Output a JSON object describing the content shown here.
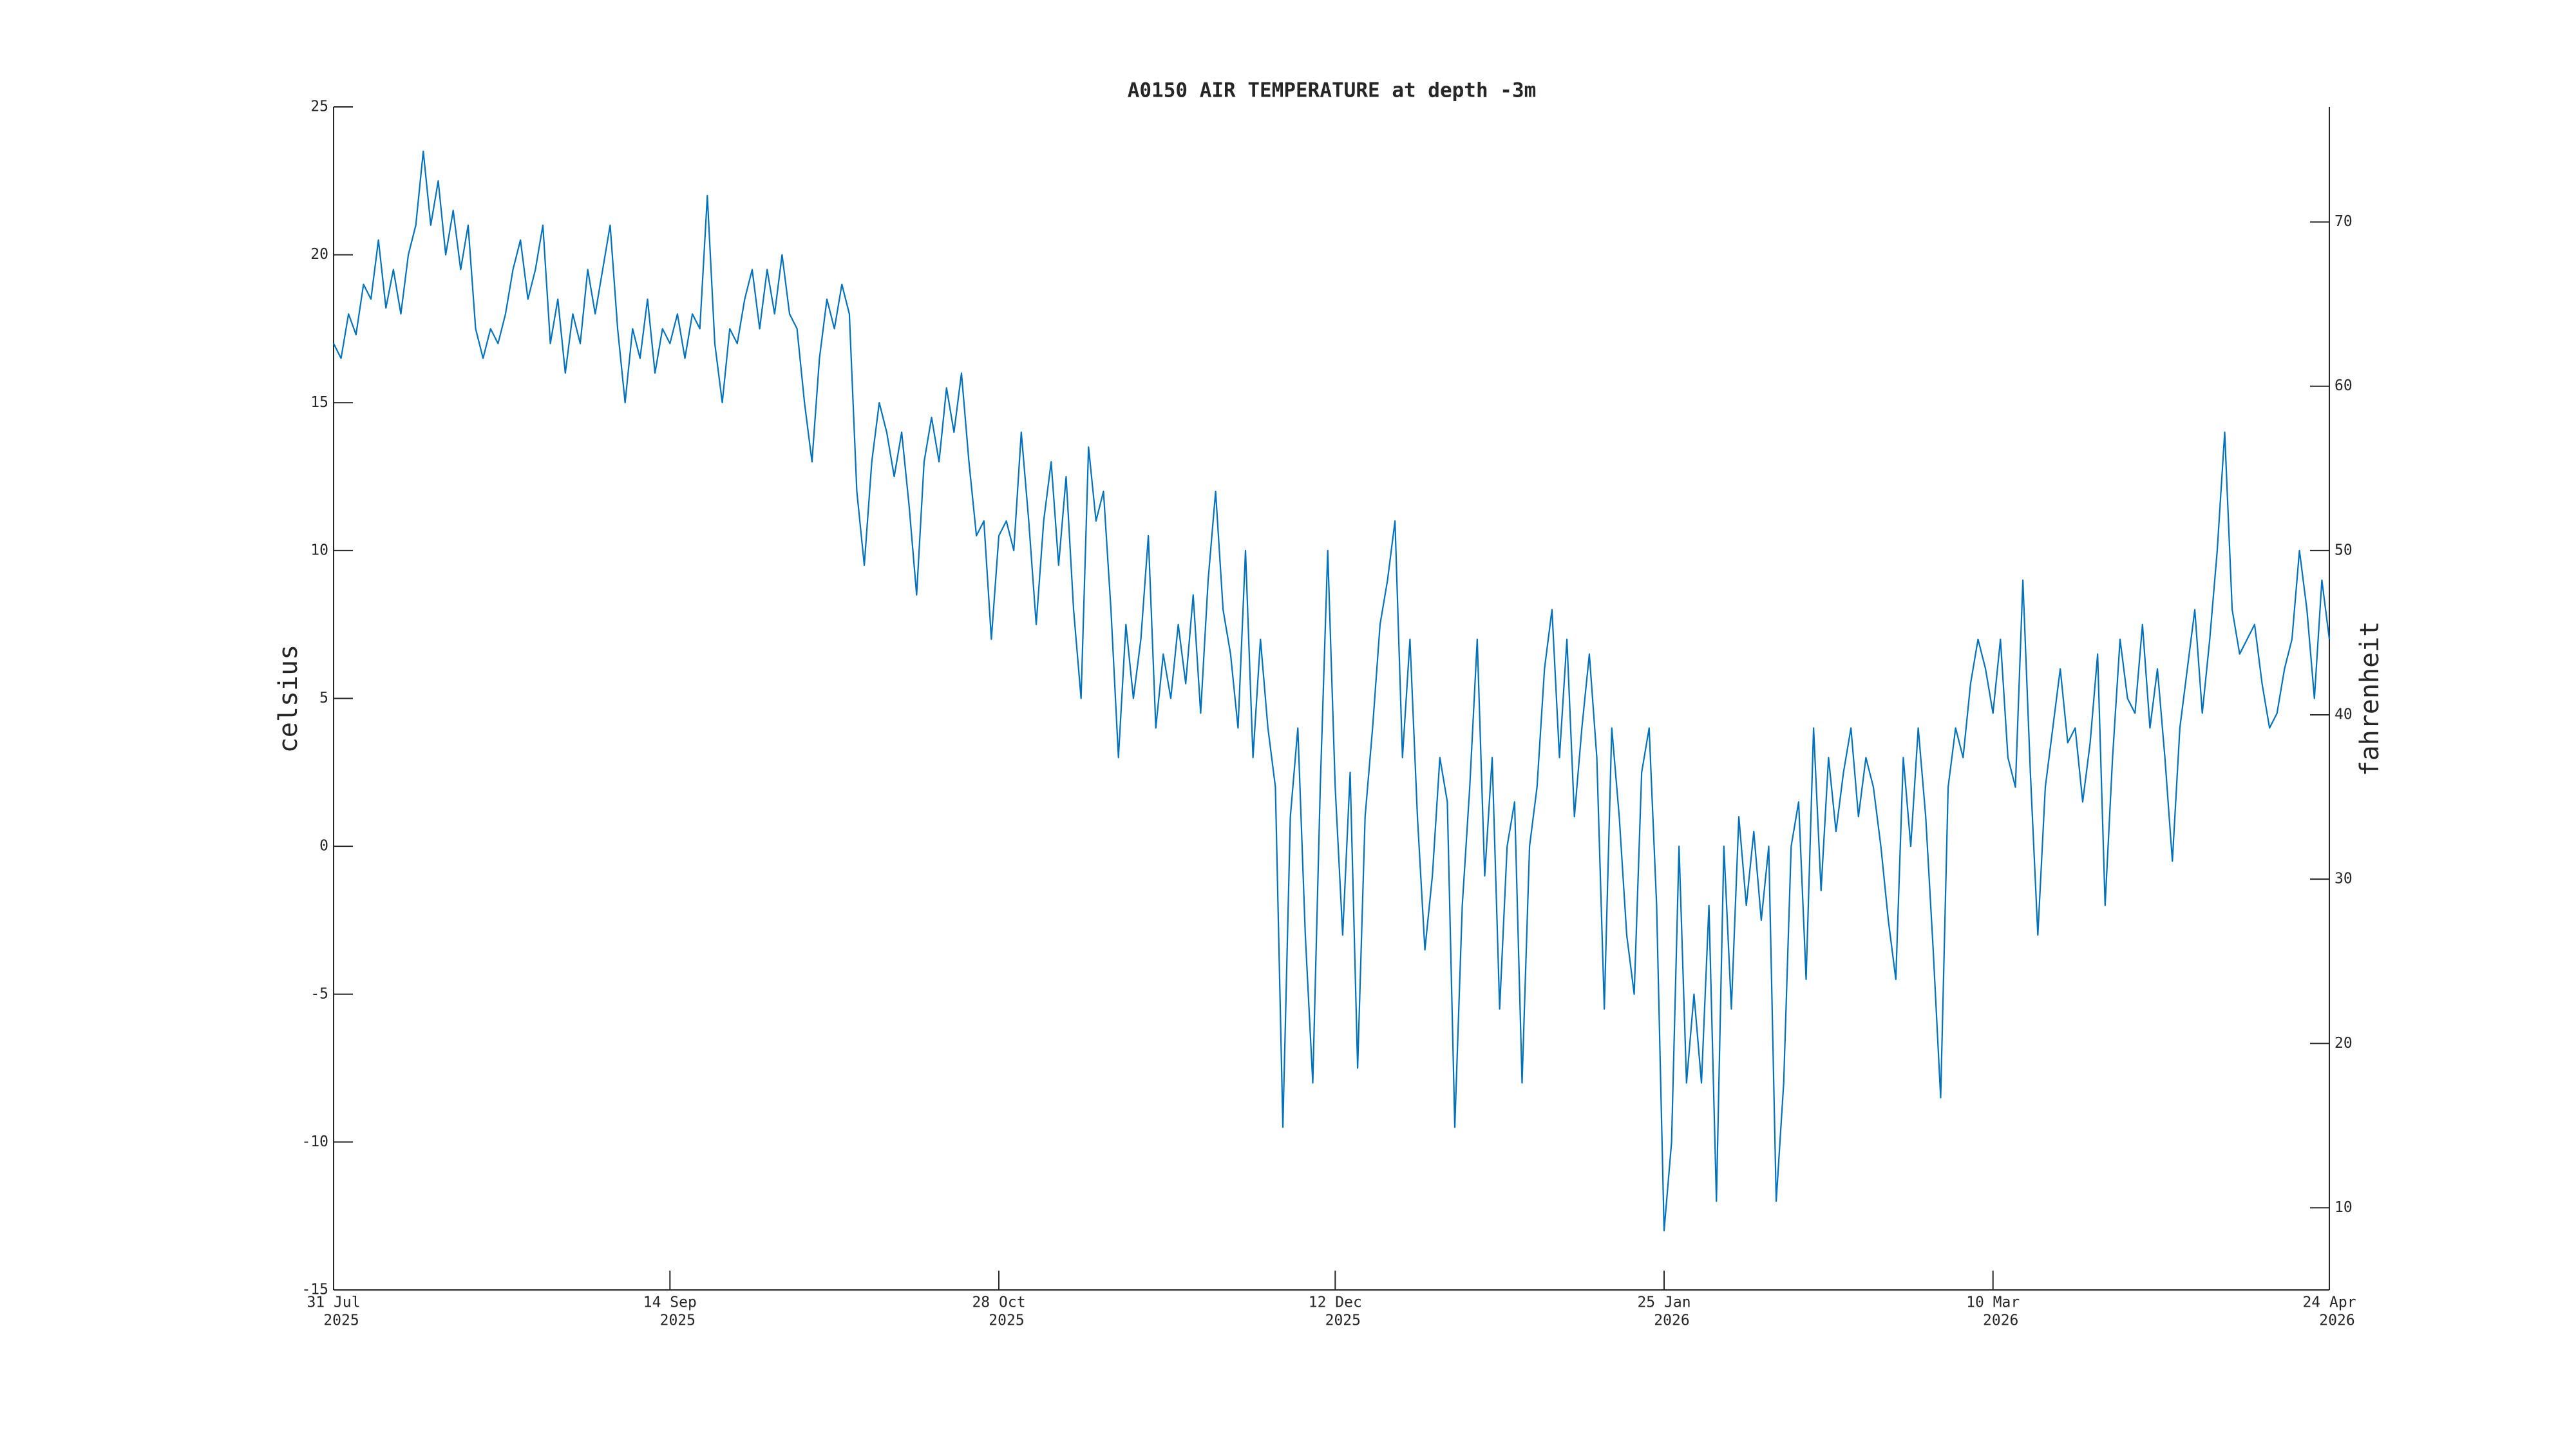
{
  "chart_data": {
    "type": "line",
    "title": "A0150 AIR TEMPERATURE at depth -3m",
    "ylabel": "celsius",
    "y2label": "fahrenheit",
    "xlim": [
      "2025-07-31",
      "2026-04-24"
    ],
    "xticks": [
      {
        "value": "2025-07-31",
        "label": [
          "31 Jul",
          "2025"
        ]
      },
      {
        "value": "2025-09-14",
        "label": [
          "14 Sep",
          "2025"
        ]
      },
      {
        "value": "2025-10-28",
        "label": [
          "28 Oct",
          "2025"
        ]
      },
      {
        "value": "2025-12-12",
        "label": [
          "12 Dec",
          "2025"
        ]
      },
      {
        "value": "2026-01-25",
        "label": [
          "25 Jan",
          "2026"
        ]
      },
      {
        "value": "2026-03-10",
        "label": [
          "10 Mar",
          "2026"
        ]
      },
      {
        "value": "2026-04-24",
        "label": [
          "24 Apr",
          "2026"
        ]
      }
    ],
    "ylim": [
      -15,
      25
    ],
    "yticks": [
      -15,
      -10,
      -5,
      0,
      5,
      10,
      15,
      20,
      25
    ],
    "y2lim": [
      5,
      77
    ],
    "y2ticks": [
      10,
      20,
      30,
      40,
      50,
      60,
      70
    ],
    "x": [
      "2025-07-31",
      "2025-08-01",
      "2025-08-02",
      "2025-08-03",
      "2025-08-04",
      "2025-08-05",
      "2025-08-06",
      "2025-08-07",
      "2025-08-08",
      "2025-08-09",
      "2025-08-10",
      "2025-08-11",
      "2025-08-12",
      "2025-08-13",
      "2025-08-14",
      "2025-08-15",
      "2025-08-16",
      "2025-08-17",
      "2025-08-18",
      "2025-08-19",
      "2025-08-20",
      "2025-08-21",
      "2025-08-22",
      "2025-08-23",
      "2025-08-24",
      "2025-08-25",
      "2025-08-26",
      "2025-08-27",
      "2025-08-28",
      "2025-08-29",
      "2025-08-30",
      "2025-08-31",
      "2025-09-01",
      "2025-09-02",
      "2025-09-03",
      "2025-09-04",
      "2025-09-05",
      "2025-09-06",
      "2025-09-07",
      "2025-09-08",
      "2025-09-09",
      "2025-09-10",
      "2025-09-11",
      "2025-09-12",
      "2025-09-13",
      "2025-09-14",
      "2025-09-15",
      "2025-09-16",
      "2025-09-17",
      "2025-09-18",
      "2025-09-19",
      "2025-09-20",
      "2025-09-21",
      "2025-09-22",
      "2025-09-23",
      "2025-09-24",
      "2025-09-25",
      "2025-09-26",
      "2025-09-27",
      "2025-09-28",
      "2025-09-29",
      "2025-09-30",
      "2025-10-01",
      "2025-10-02",
      "2025-10-03",
      "2025-10-04",
      "2025-10-05",
      "2025-10-06",
      "2025-10-07",
      "2025-10-08",
      "2025-10-09",
      "2025-10-10",
      "2025-10-11",
      "2025-10-12",
      "2025-10-13",
      "2025-10-14",
      "2025-10-15",
      "2025-10-16",
      "2025-10-17",
      "2025-10-18",
      "2025-10-19",
      "2025-10-20",
      "2025-10-21",
      "2025-10-22",
      "2025-10-23",
      "2025-10-24",
      "2025-10-25",
      "2025-10-26",
      "2025-10-27",
      "2025-10-28",
      "2025-10-29",
      "2025-10-30",
      "2025-10-31",
      "2025-11-01",
      "2025-11-02",
      "2025-11-03",
      "2025-11-04",
      "2025-11-05",
      "2025-11-06",
      "2025-11-07",
      "2025-11-08",
      "2025-11-09",
      "2025-11-10",
      "2025-11-11",
      "2025-11-12",
      "2025-11-13",
      "2025-11-14",
      "2025-11-15",
      "2025-11-16",
      "2025-11-17",
      "2025-11-18",
      "2025-11-19",
      "2025-11-20",
      "2025-11-21",
      "2025-11-22",
      "2025-11-23",
      "2025-11-24",
      "2025-11-25",
      "2025-11-26",
      "2025-11-27",
      "2025-11-28",
      "2025-11-29",
      "2025-11-30",
      "2025-12-01",
      "2025-12-02",
      "2025-12-03",
      "2025-12-04",
      "2025-12-05",
      "2025-12-06",
      "2025-12-07",
      "2025-12-08",
      "2025-12-09",
      "2025-12-10",
      "2025-12-11",
      "2025-12-12",
      "2025-12-13",
      "2025-12-14",
      "2025-12-15",
      "2025-12-16",
      "2025-12-17",
      "2025-12-18",
      "2025-12-19",
      "2025-12-20",
      "2025-12-21",
      "2025-12-22",
      "2025-12-23",
      "2025-12-24",
      "2025-12-25",
      "2025-12-26",
      "2025-12-27",
      "2025-12-28",
      "2025-12-29",
      "2025-12-30",
      "2025-12-31",
      "2026-01-01",
      "2026-01-02",
      "2026-01-03",
      "2026-01-04",
      "2026-01-05",
      "2026-01-06",
      "2026-01-07",
      "2026-01-08",
      "2026-01-09",
      "2026-01-10",
      "2026-01-11",
      "2026-01-12",
      "2026-01-13",
      "2026-01-14",
      "2026-01-15",
      "2026-01-16",
      "2026-01-17",
      "2026-01-18",
      "2026-01-19",
      "2026-01-20",
      "2026-01-21",
      "2026-01-22",
      "2026-01-23",
      "2026-01-24",
      "2026-01-25",
      "2026-01-26",
      "2026-01-27",
      "2026-01-28",
      "2026-01-29",
      "2026-01-30",
      "2026-01-31",
      "2026-02-01",
      "2026-02-02",
      "2026-02-03",
      "2026-02-04",
      "2026-02-05",
      "2026-02-06",
      "2026-02-07",
      "2026-02-08",
      "2026-02-09",
      "2026-02-10",
      "2026-02-11",
      "2026-02-12",
      "2026-02-13",
      "2026-02-14",
      "2026-02-15",
      "2026-02-16",
      "2026-02-17",
      "2026-02-18",
      "2026-02-19",
      "2026-02-20",
      "2026-02-21",
      "2026-02-22",
      "2026-02-23",
      "2026-02-24",
      "2026-02-25",
      "2026-02-26",
      "2026-02-27",
      "2026-02-28",
      "2026-03-01",
      "2026-03-02",
      "2026-03-03",
      "2026-03-04",
      "2026-03-05",
      "2026-03-06",
      "2026-03-07",
      "2026-03-08",
      "2026-03-09",
      "2026-03-10",
      "2026-03-11",
      "2026-03-12",
      "2026-03-13",
      "2026-03-14",
      "2026-03-15",
      "2026-03-16",
      "2026-03-17",
      "2026-03-18",
      "2026-03-19",
      "2026-03-20",
      "2026-03-21",
      "2026-03-22",
      "2026-03-23",
      "2026-03-24",
      "2026-03-25",
      "2026-03-26",
      "2026-03-27",
      "2026-03-28",
      "2026-03-29",
      "2026-03-30",
      "2026-03-31",
      "2026-04-01",
      "2026-04-02",
      "2026-04-03",
      "2026-04-04",
      "2026-04-05",
      "2026-04-06",
      "2026-04-07",
      "2026-04-08",
      "2026-04-09",
      "2026-04-10",
      "2026-04-11",
      "2026-04-12",
      "2026-04-13",
      "2026-04-14",
      "2026-04-15",
      "2026-04-16",
      "2026-04-17",
      "2026-04-18",
      "2026-04-19",
      "2026-04-20",
      "2026-04-21",
      "2026-04-22",
      "2026-04-23",
      "2026-04-24"
    ],
    "series": [
      {
        "color": "#0072bd",
        "values": [
          17,
          16.5,
          18,
          17.3,
          19,
          18.5,
          20.5,
          18.2,
          19.5,
          18,
          20,
          21,
          23.5,
          21,
          22.5,
          20,
          21.5,
          19.5,
          21,
          17.5,
          16.5,
          17.5,
          17,
          18,
          19.5,
          20.5,
          18.5,
          19.5,
          21,
          17,
          18.5,
          16,
          18,
          17,
          19.5,
          18,
          19.5,
          21,
          17.5,
          15,
          17.5,
          16.5,
          18.5,
          16,
          17.5,
          17,
          18,
          16.5,
          18,
          17.5,
          22,
          17,
          15,
          17.5,
          17,
          18.5,
          19.5,
          17.5,
          19.5,
          18,
          20,
          18,
          17.5,
          15,
          13,
          16.5,
          18.5,
          17.5,
          19,
          18,
          12,
          9.5,
          13,
          15,
          14,
          12.5,
          14,
          11.5,
          8.5,
          13,
          14.5,
          13,
          15.5,
          14,
          16,
          13,
          10.5,
          11,
          7,
          10.5,
          11,
          10,
          14,
          11,
          7.5,
          11,
          13,
          9.5,
          12.5,
          8,
          5,
          13.5,
          11,
          12,
          8,
          3,
          7.5,
          5,
          7,
          10.5,
          4,
          6.5,
          5,
          7.5,
          5.5,
          8.5,
          4.5,
          9,
          12,
          8,
          6.5,
          4,
          10,
          3,
          7,
          4,
          2,
          -9.5,
          1,
          4,
          -3,
          -8,
          2,
          10,
          2,
          -3,
          2.5,
          -7.5,
          1,
          4,
          7.5,
          9,
          11,
          3,
          7,
          1,
          -3.5,
          -1,
          3,
          1.5,
          -9.5,
          -2,
          2,
          7,
          -1,
          3,
          -5.5,
          0,
          1.5,
          -8,
          0,
          2,
          6,
          8,
          3,
          7,
          1,
          4,
          6.5,
          3,
          -5.5,
          4,
          1,
          -3,
          -5,
          2.5,
          4,
          -2,
          -13,
          -10,
          0,
          -8,
          -5,
          -8,
          -2,
          -12,
          0,
          -5.5,
          1,
          -2,
          0.5,
          -2.5,
          0,
          -12,
          -8,
          0,
          1.5,
          -4.5,
          4,
          -1.5,
          3,
          0.5,
          2.5,
          4,
          1,
          3,
          2,
          0,
          -2.5,
          -4.5,
          3,
          0,
          4,
          1,
          -3.5,
          -8.5,
          2,
          4,
          3,
          5.5,
          7,
          6,
          4.5,
          7,
          3,
          2,
          9,
          2.5,
          -3,
          2,
          4,
          6,
          3.5,
          4,
          1.5,
          3.5,
          6.5,
          -2,
          3,
          7,
          5,
          4.5,
          7.5,
          4,
          6,
          3,
          -0.5,
          4,
          6,
          8,
          4.5,
          7,
          10,
          14,
          8,
          6.5,
          7,
          7.5,
          5.5,
          4,
          4.5,
          6,
          7,
          10,
          8,
          5,
          9,
          7
        ]
      }
    ]
  }
}
